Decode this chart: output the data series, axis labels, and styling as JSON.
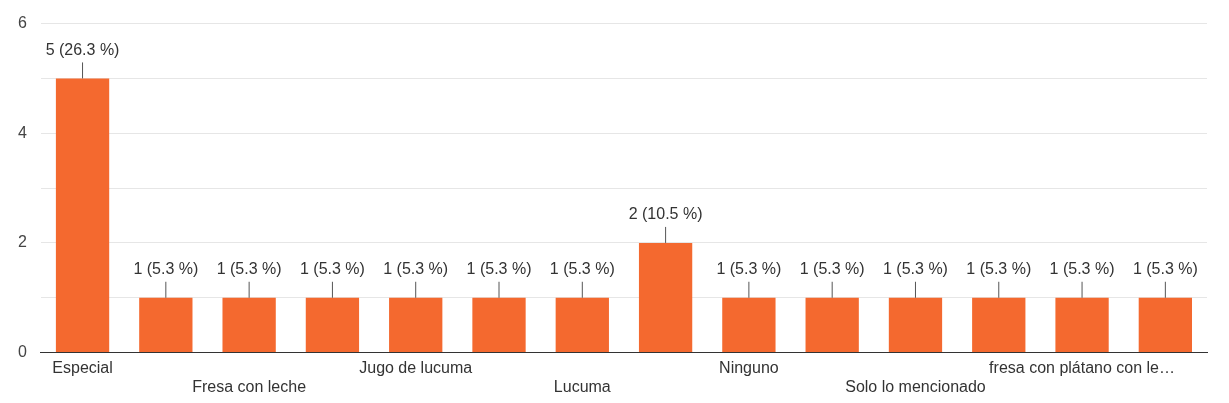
{
  "chart_data": {
    "type": "bar",
    "categories": [
      "Especial",
      null,
      "Fresa con leche",
      null,
      "Jugo de lucuma",
      null,
      "Lucuma",
      null,
      "Ninguno",
      null,
      "Solo lo mencionado",
      null,
      "fresa con plátano con le…",
      null
    ],
    "values": [
      5,
      1,
      1,
      1,
      1,
      1,
      1,
      2,
      1,
      1,
      1,
      1,
      1,
      1
    ],
    "color": "#f4692f",
    "value_labels": [
      "5 (26.3 %)",
      "1 (5.3 %)",
      "1 (5.3 %)",
      "1 (5.3 %)",
      "1 (5.3 %)",
      "1 (5.3 %)",
      "1 (5.3 %)",
      "2 (10.5 %)",
      "1 (5.3 %)",
      "1 (5.3 %)",
      "1 (5.3 %)",
      "1 (5.3 %)",
      "1 (5.3 %)",
      "1 (5.3 %)"
    ],
    "ylim": [
      0,
      6
    ],
    "yticks": [
      0,
      {
        "value": 1,
        "label": null
      },
      2,
      {
        "value": 3,
        "label": null
      },
      4,
      {
        "value": 5,
        "label": null
      },
      6
    ],
    "grid": "y",
    "legend": false
  }
}
